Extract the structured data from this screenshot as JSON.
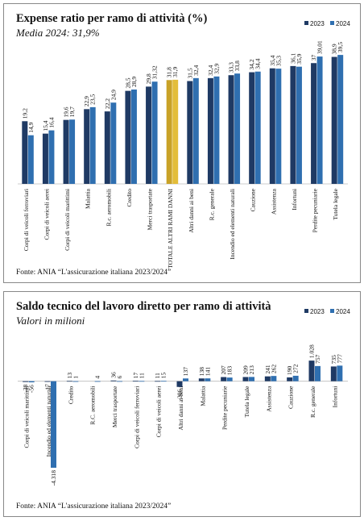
{
  "chart_data": [
    {
      "type": "bar",
      "title": "Expense ratio per ramo di attività (%)",
      "subtitle": "Media 2024: 31,9%",
      "categories": [
        "Corpi di veicoli ferroviari",
        "Corpi di veicoli aerei",
        "Corpi di veicoli marittimi",
        "Malattia",
        "R.c. aeromobili",
        "Credito",
        "Merci trasportate",
        "TOTALE ALTRI RAMI DANNI",
        "Altri danni ai beni",
        "R.c. generale",
        "Incendio ed elementi naturali",
        "Cauzione",
        "Assistenza",
        "Infortuni",
        "Perdite pecuniarie",
        "Tutela legale"
      ],
      "series": [
        {
          "name": "2023",
          "color": "#1f3a64",
          "highlight_color": "#c9a227",
          "values": [
            19.2,
            15.4,
            19.6,
            22.9,
            22.2,
            28.5,
            29.8,
            31.8,
            31.5,
            32.4,
            33.3,
            34.2,
            35.4,
            36.1,
            37,
            38.9
          ],
          "value_labels": [
            "19,2",
            "15,4",
            "19,6",
            "22,9",
            "22,2",
            "28,5",
            "29,8",
            "31,8",
            "31,5",
            "32,4",
            "33,3",
            "34,2",
            "35,4",
            "36,1",
            "37",
            "38,9"
          ]
        },
        {
          "name": "2024",
          "color": "#2f6fb0",
          "highlight_color": "#e3bd3a",
          "values": [
            14.9,
            16.4,
            19.7,
            23.5,
            24.9,
            28.9,
            31.32,
            31.9,
            32.4,
            32.9,
            33.8,
            34.4,
            35.3,
            35.9,
            39.01,
            39.5
          ],
          "value_labels": [
            "14,9",
            "16,4",
            "19,7",
            "23,5",
            "24,9",
            "28,9",
            "31,32",
            "31,9",
            "32,4",
            "32,9",
            "33,8",
            "34,4",
            "35,3",
            "35,9",
            "39,01",
            "39,5"
          ]
        }
      ],
      "highlight_index": 7,
      "ylim": [
        0,
        42
      ],
      "legend": "top-right",
      "source": "Fonte: ANIA “L'assicurazione italiana 2023/2024”"
    },
    {
      "type": "bar",
      "title": "Saldo tecnico del lavoro diretto per ramo di attività",
      "subtitle": "Valori in milioni",
      "categories": [
        "Corpi di veicoli marittimi",
        "Incendio ed elementi naturali",
        "Credito",
        "R.C. aeromobili",
        "Merci trasportate",
        "Corpi di veicoli ferroviari",
        "Corpi di veicoli aerei",
        "Altri danni ai beni",
        "Malattia",
        "Perdite pecuniarie",
        "Tutela legale",
        "Assistenza",
        "Cauzione",
        "R.c. generale",
        "Infortuni"
      ],
      "series": [
        {
          "name": "2023",
          "color": "#1f3a64",
          "values": [
            -38,
            -17,
            13,
            null,
            36,
            17,
            11,
            -286,
            138,
            207,
            209,
            241,
            190,
            1028,
            735
          ],
          "value_labels": [
            "-38",
            "-17",
            "13",
            null,
            "36",
            "17",
            "11",
            "-286",
            "138",
            "207",
            "209",
            "241",
            "190",
            "1.028",
            "735"
          ]
        },
        {
          "name": "2024",
          "color": "#2f6fb0",
          "values": [
            -56,
            -4318,
            1,
            4,
            6,
            11,
            15,
            137,
            141,
            183,
            213,
            262,
            272,
            757,
            777
          ],
          "value_labels": [
            "-56",
            "-4.318",
            "1",
            "4",
            "6",
            "11",
            "15",
            "137",
            "141",
            "183",
            "213",
            "262",
            "272",
            "757",
            "777"
          ]
        }
      ],
      "ylim": [
        -4400,
        2200
      ],
      "legend": "top-right",
      "source": "Fonte: ANIA “L'assicurazione italiana 2023/2024”"
    }
  ]
}
